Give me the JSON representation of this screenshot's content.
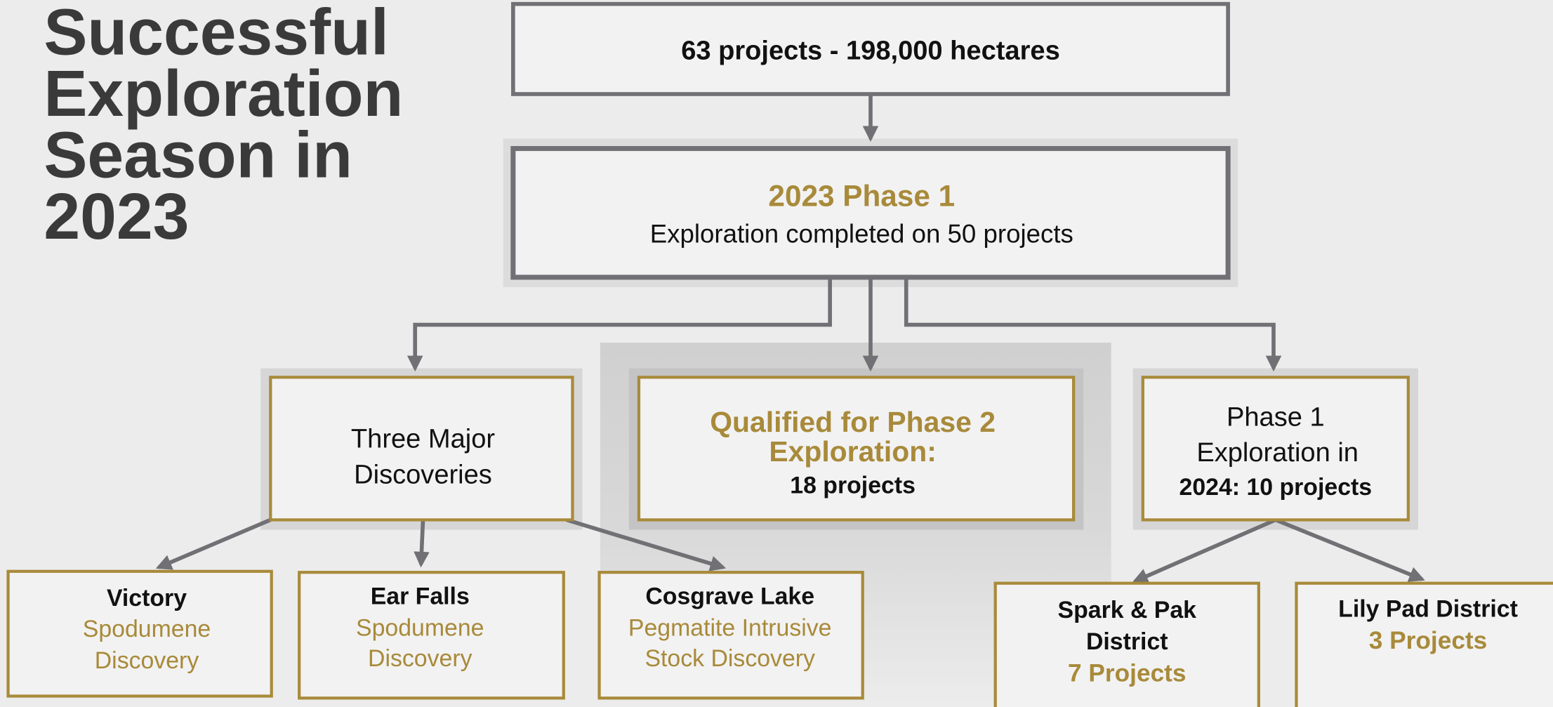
{
  "title": {
    "lines": [
      "Successful",
      "Exploration",
      "Season in",
      "2023"
    ]
  },
  "nodes": {
    "top": {
      "text": "63 projects  -  198,000 hectares"
    },
    "phase1": {
      "heading": "2023 Phase 1",
      "text": "Exploration completed on 50 projects"
    },
    "discoveries": {
      "lines": [
        "Three Major",
        "Discoveries"
      ]
    },
    "qualified": {
      "heading_lines": [
        "Qualified for Phase 2",
        "Exploration:"
      ],
      "text": "18 projects"
    },
    "phase1_2024": {
      "lines": [
        "Phase 1",
        "Exploration in"
      ],
      "bold": "2024: 10 projects"
    },
    "victory": {
      "name": "Victory",
      "detail_lines": [
        "Spodumene",
        "Discovery"
      ]
    },
    "ear_falls": {
      "name": "Ear Falls",
      "detail_lines": [
        "Spodumene",
        "Discovery"
      ]
    },
    "cosgrave": {
      "name": "Cosgrave Lake",
      "detail_lines": [
        "Pegmatite Intrusive",
        "Stock Discovery"
      ]
    },
    "spark_pak": {
      "name_lines": [
        "Spark & Pak",
        "District"
      ],
      "detail": "7 Projects"
    },
    "lily_pad": {
      "name": "Lily Pad District",
      "detail": "3 Projects"
    }
  }
}
